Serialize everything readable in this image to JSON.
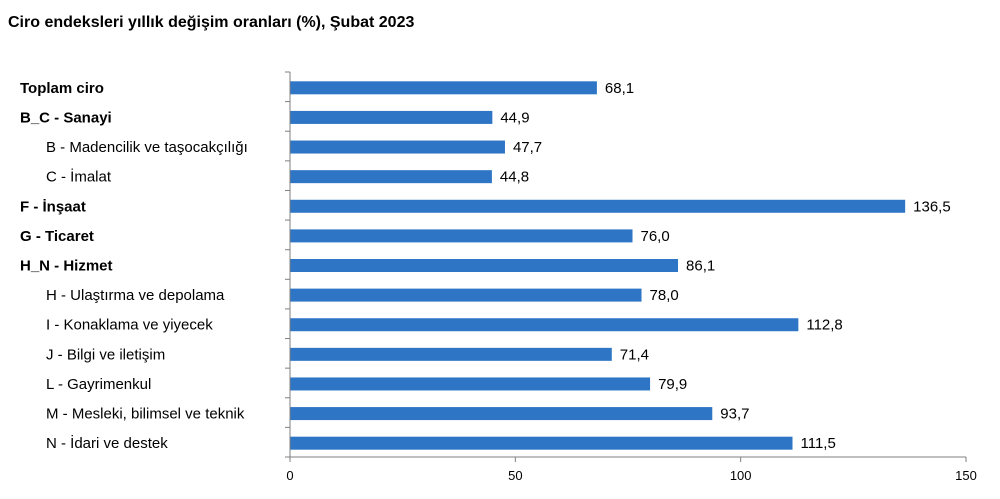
{
  "title": "Ciro endeksleri yıllık değişim oranları (%), Şubat 2023",
  "colors": {
    "bar": "#2E75C6",
    "axis": "#7f7f7f"
  },
  "chart_data": {
    "type": "bar",
    "orientation": "horizontal",
    "title": "Ciro endeksleri yıllık değişim oranları (%), Şubat 2023",
    "xlabel": "",
    "ylabel": "",
    "xlim": [
      0,
      150
    ],
    "xticks": [
      "0",
      "50",
      "100",
      "150"
    ],
    "categories": [
      {
        "label": "Toplam ciro",
        "bold": true,
        "indent": false
      },
      {
        "label": "B_C - Sanayi",
        "bold": true,
        "indent": false
      },
      {
        "label": "B - Madencilik ve taşocakçılığı",
        "bold": false,
        "indent": true
      },
      {
        "label": "C - İmalat",
        "bold": false,
        "indent": true
      },
      {
        "label": "F - İnşaat",
        "bold": true,
        "indent": false
      },
      {
        "label": "G - Ticaret",
        "bold": true,
        "indent": false
      },
      {
        "label": "H_N - Hizmet",
        "bold": true,
        "indent": false
      },
      {
        "label": "H - Ulaştırma ve depolama",
        "bold": false,
        "indent": true
      },
      {
        "label": "I - Konaklama ve yiyecek",
        "bold": false,
        "indent": true
      },
      {
        "label": "J - Bilgi ve iletişim",
        "bold": false,
        "indent": true
      },
      {
        "label": "L - Gayrimenkul",
        "bold": false,
        "indent": true
      },
      {
        "label": "M - Mesleki, bilimsel ve teknik",
        "bold": false,
        "indent": true
      },
      {
        "label": "N - İdari ve destek",
        "bold": false,
        "indent": true
      }
    ],
    "values": [
      68.1,
      44.9,
      47.7,
      44.8,
      136.5,
      76.0,
      86.1,
      78.0,
      112.8,
      71.4,
      79.9,
      93.7,
      111.5
    ],
    "value_labels": [
      "68,1",
      "44,9",
      "47,7",
      "44,8",
      "136,5",
      "76,0",
      "86,1",
      "78,0",
      "112,8",
      "71,4",
      "79,9",
      "93,7",
      "111,5"
    ],
    "grid": false,
    "legend": "none"
  }
}
